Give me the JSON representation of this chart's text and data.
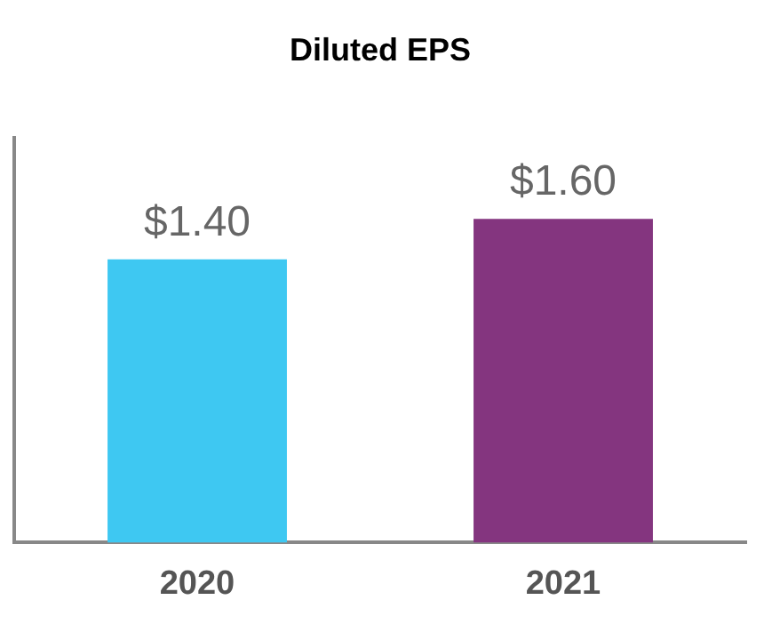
{
  "chart_data": {
    "type": "bar",
    "title": "Diluted EPS",
    "categories": [
      "2020",
      "2021"
    ],
    "values": [
      1.4,
      1.6
    ],
    "colors": [
      "#3ec8f2",
      "#84357f"
    ],
    "value_labels": [
      "$1.40",
      "$1.60"
    ],
    "ylim": [
      0,
      2
    ],
    "tick_labels": "x",
    "grid": false,
    "legend": false
  }
}
